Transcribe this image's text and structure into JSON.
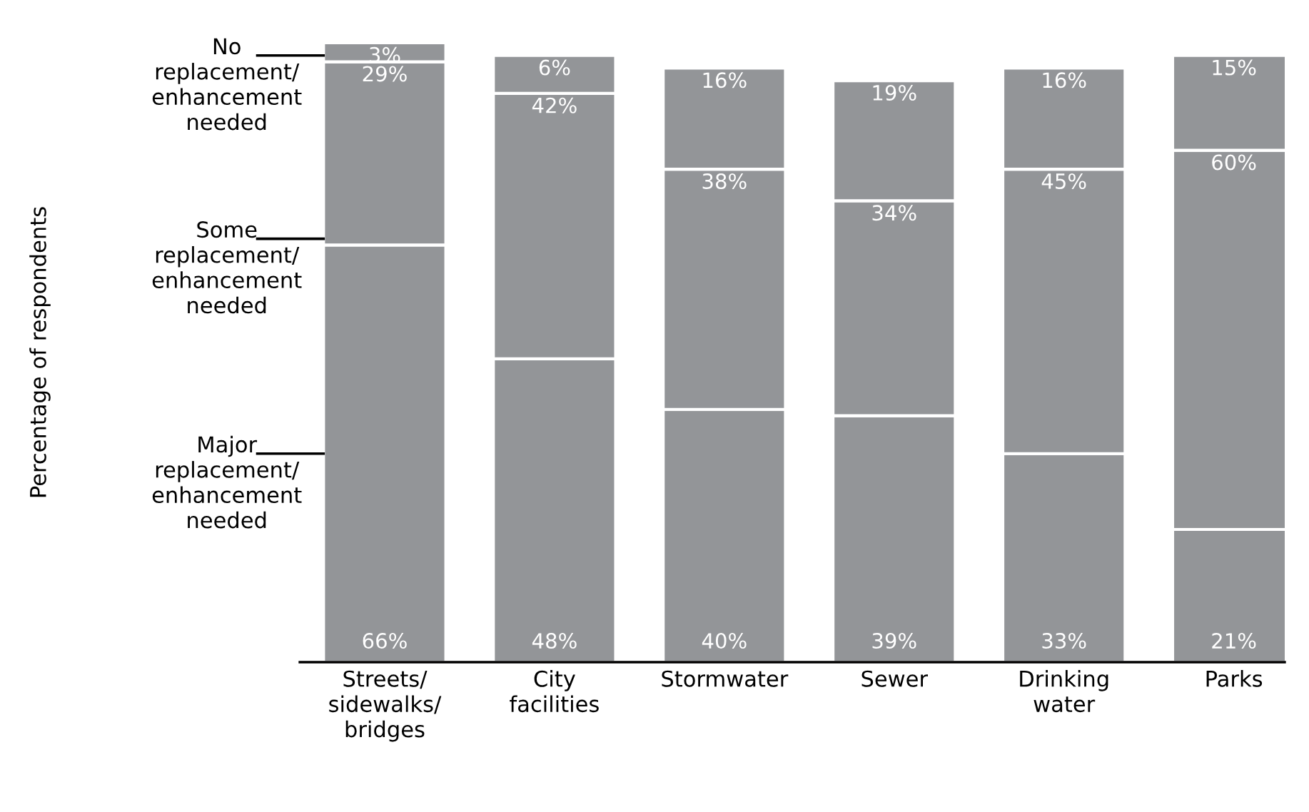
{
  "chart_data": {
    "type": "bar",
    "stacked": true,
    "annotations": [
      "Percentage of respondents"
    ],
    "categories": [
      "Streets/\nsidewalks/\nbridges",
      "City\nfacilities",
      "Stormwater",
      "Sewer",
      "Drinking\nwater",
      "Parks"
    ],
    "series": [
      {
        "name": "Major\nreplacement/\nenhancement\nneeded",
        "color": "#939598",
        "values": [
          66,
          48,
          40,
          39,
          33,
          21
        ],
        "value_labels": [
          "66%",
          "48%",
          "40%",
          "39%",
          "33%",
          "21%"
        ]
      },
      {
        "name": "Some\nreplacement/\nenhancement\nneeded",
        "color": "#939598",
        "values": [
          29,
          42,
          38,
          34,
          45,
          60
        ],
        "value_labels": [
          "29%",
          "42%",
          "38%",
          "34%",
          "45%",
          "60%"
        ]
      },
      {
        "name": "No\nreplacement/\nenhancement\nneeded",
        "color": "#939598",
        "values": [
          3,
          6,
          16,
          19,
          16,
          15
        ],
        "value_labels": [
          "3%",
          "6%",
          "16%",
          "19%",
          "16%",
          "15%"
        ]
      }
    ]
  }
}
